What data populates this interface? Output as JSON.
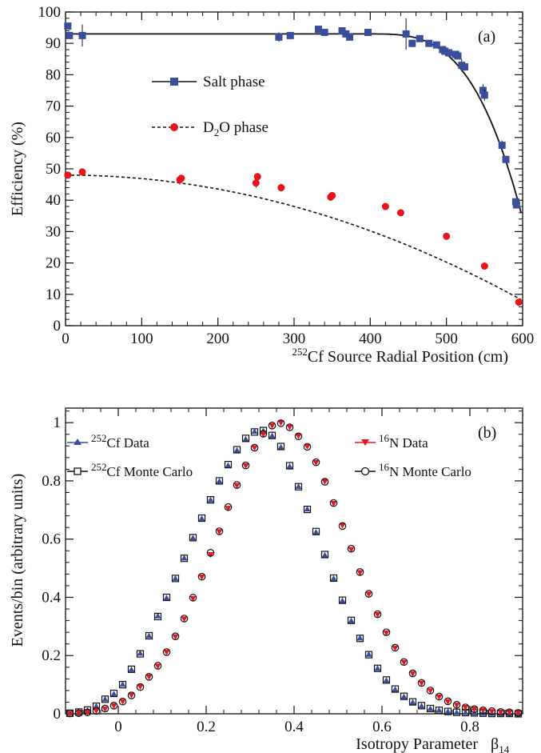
{
  "chart_data": [
    {
      "type": "scatter",
      "panel_label": "(a)",
      "xlabel": {
        "prefix_sup": "252",
        "text": "Cf Source Radial Position (cm)"
      },
      "ylabel": "Efficiency (%)",
      "xlim": [
        0,
        600
      ],
      "ylim": [
        0,
        100
      ],
      "x_ticks": [
        0,
        100,
        200,
        300,
        400,
        500,
        600
      ],
      "y_ticks": [
        0,
        10,
        20,
        30,
        40,
        50,
        60,
        70,
        80,
        90,
        100
      ],
      "legend": {
        "placement": "upper-center"
      },
      "series": [
        {
          "name": "Salt phase",
          "marker": "square",
          "color": "#3b4e9c",
          "fit_line": "solid",
          "fit": {
            "plateau": 93,
            "x0": 400,
            "x1": 598,
            "y_end": 36,
            "power": 3.2
          },
          "points": [
            {
              "x": 3,
              "y": 95.5,
              "err": 1
            },
            {
              "x": 5,
              "y": 92.5,
              "err": 1
            },
            {
              "x": 22,
              "y": 92.5,
              "err": 3.5
            },
            {
              "x": 280,
              "y": 92,
              "err": 1.5
            },
            {
              "x": 295,
              "y": 92.5,
              "err": 1
            },
            {
              "x": 332,
              "y": 94.5,
              "err": 0.8
            },
            {
              "x": 340,
              "y": 93.5,
              "err": 0.8
            },
            {
              "x": 363,
              "y": 94,
              "err": 1
            },
            {
              "x": 368,
              "y": 93,
              "err": 1.2
            },
            {
              "x": 373,
              "y": 92,
              "err": 0.8
            },
            {
              "x": 397,
              "y": 93.5,
              "err": 0.8
            },
            {
              "x": 447,
              "y": 93,
              "err": 5
            },
            {
              "x": 455,
              "y": 90,
              "err": 1.2
            },
            {
              "x": 465,
              "y": 91.5,
              "err": 0.8
            },
            {
              "x": 477,
              "y": 90,
              "err": 0.8
            },
            {
              "x": 487,
              "y": 89.5,
              "err": 0.8
            },
            {
              "x": 495,
              "y": 88,
              "err": 1
            },
            {
              "x": 498,
              "y": 87.5,
              "err": 1
            },
            {
              "x": 503,
              "y": 87,
              "err": 1
            },
            {
              "x": 512,
              "y": 86.5,
              "err": 1
            },
            {
              "x": 515,
              "y": 86,
              "err": 1
            },
            {
              "x": 520,
              "y": 83,
              "err": 2
            },
            {
              "x": 524,
              "y": 82.5,
              "err": 1.2
            },
            {
              "x": 548,
              "y": 75,
              "err": 2
            },
            {
              "x": 550,
              "y": 73.5,
              "err": 1.8
            },
            {
              "x": 573,
              "y": 57.5,
              "err": 1.5
            },
            {
              "x": 578,
              "y": 53,
              "err": 1
            },
            {
              "x": 591,
              "y": 39.5,
              "err": 1
            },
            {
              "x": 592,
              "y": 38.5,
              "err": 1
            }
          ]
        },
        {
          "name_main": "D",
          "name_sub": "2",
          "name_tail": "O phase",
          "marker": "circle",
          "color": "#e8141c",
          "fit_line": "dashed",
          "fit": {
            "y0": 48,
            "a": 0.000111
          },
          "points": [
            {
              "x": 3,
              "y": 48,
              "err": 0.8
            },
            {
              "x": 22,
              "y": 49,
              "err": 1
            },
            {
              "x": 150,
              "y": 46.5,
              "err": 1.5
            },
            {
              "x": 152,
              "y": 47,
              "err": 1
            },
            {
              "x": 250,
              "y": 45.5,
              "err": 1.5
            },
            {
              "x": 252,
              "y": 47.5,
              "err": 1.2
            },
            {
              "x": 283,
              "y": 44,
              "err": 1.2
            },
            {
              "x": 348,
              "y": 41,
              "err": 1.2
            },
            {
              "x": 350,
              "y": 41.5,
              "err": 0.8
            },
            {
              "x": 420,
              "y": 38,
              "err": 0.6
            },
            {
              "x": 440,
              "y": 36,
              "err": 0.6
            },
            {
              "x": 500,
              "y": 28.5,
              "err": 0.6
            },
            {
              "x": 550,
              "y": 19,
              "err": 0.6
            },
            {
              "x": 595,
              "y": 7.5,
              "err": 0.6
            }
          ]
        }
      ]
    },
    {
      "type": "scatter",
      "panel_label": "(b)",
      "xlabel": "Isotropy Parameter",
      "xlabel_symbol": {
        "main": "β",
        "sub": "14"
      },
      "ylabel": "Events/bin (arbitrary units)",
      "xlim": [
        -0.12,
        0.92
      ],
      "ylim": [
        0,
        1.05
      ],
      "x_ticks": [
        0,
        0.2,
        0.4,
        0.6,
        0.8
      ],
      "y_ticks": [
        0,
        0.2,
        0.4,
        0.6,
        0.8,
        1
      ],
      "x_tick_labels": [
        "0",
        "0.2",
        "0.4",
        "0.6",
        "0.8"
      ],
      "y_tick_labels": [
        "0",
        "0.2",
        "0.4",
        "0.6",
        "0.8",
        "1"
      ],
      "bin_width": 0.02,
      "x_start": -0.11,
      "series": [
        {
          "name_sup": "252",
          "name": "Cf Data",
          "marker": "triangle-up",
          "color": "#3b4e9c",
          "legend_position": "left",
          "y": [
            0.003,
            0.006,
            0.012,
            0.026,
            0.05,
            0.068,
            0.101,
            0.152,
            0.208,
            0.268,
            0.336,
            0.398,
            0.465,
            0.535,
            0.604,
            0.671,
            0.735,
            0.799,
            0.853,
            0.905,
            0.944,
            0.97,
            0.972,
            0.955,
            0.916,
            0.85,
            0.781,
            0.703,
            0.624,
            0.545,
            0.465,
            0.389,
            0.32,
            0.26,
            0.204,
            0.156,
            0.115,
            0.084,
            0.059,
            0.04,
            0.027,
            0.018,
            0.012,
            0.008,
            0.005,
            0.004,
            0.003,
            0.002,
            0.001,
            0.001,
            0.001,
            0.0
          ]
        },
        {
          "name_sup": "252",
          "name": "Cf Monte Carlo",
          "marker": "open-square",
          "color": "#111111",
          "legend_position": "left",
          "y": [
            0.002,
            0.006,
            0.013,
            0.026,
            0.05,
            0.07,
            0.1,
            0.153,
            0.206,
            0.268,
            0.334,
            0.4,
            0.465,
            0.534,
            0.605,
            0.672,
            0.735,
            0.8,
            0.856,
            0.907,
            0.946,
            0.968,
            0.973,
            0.956,
            0.918,
            0.852,
            0.78,
            0.702,
            0.626,
            0.547,
            0.466,
            0.39,
            0.321,
            0.259,
            0.203,
            0.156,
            0.116,
            0.085,
            0.06,
            0.041,
            0.028,
            0.018,
            0.012,
            0.008,
            0.005,
            0.004,
            0.003,
            0.002,
            0.001,
            0.001,
            0.001,
            0.0
          ]
        },
        {
          "name_sup": "16",
          "name": "N Data",
          "marker": "triangle-down",
          "color": "#e8141c",
          "legend_position": "right",
          "y": [
            0.0,
            0.002,
            0.005,
            0.01,
            0.017,
            0.028,
            0.042,
            0.064,
            0.093,
            0.127,
            0.164,
            0.212,
            0.265,
            0.326,
            0.396,
            0.47,
            0.547,
            0.626,
            0.706,
            0.784,
            0.852,
            0.914,
            0.96,
            0.99,
            1.0,
            0.985,
            0.954,
            0.918,
            0.863,
            0.798,
            0.723,
            0.647,
            0.565,
            0.485,
            0.411,
            0.341,
            0.278,
            0.226,
            0.177,
            0.138,
            0.105,
            0.079,
            0.058,
            0.042,
            0.03,
            0.022,
            0.016,
            0.012,
            0.008,
            0.006,
            0.005,
            0.003
          ]
        },
        {
          "name_sup": "16",
          "name": "N Monte Carlo",
          "marker": "open-circle",
          "color": "#111111",
          "legend_position": "right",
          "y": [
            0.001,
            0.002,
            0.005,
            0.01,
            0.018,
            0.028,
            0.042,
            0.063,
            0.092,
            0.127,
            0.165,
            0.212,
            0.266,
            0.327,
            0.399,
            0.471,
            0.553,
            0.627,
            0.71,
            0.786,
            0.853,
            0.914,
            0.962,
            0.99,
            0.998,
            0.984,
            0.953,
            0.917,
            0.864,
            0.797,
            0.724,
            0.645,
            0.567,
            0.487,
            0.412,
            0.342,
            0.28,
            0.227,
            0.178,
            0.139,
            0.106,
            0.08,
            0.059,
            0.043,
            0.031,
            0.022,
            0.016,
            0.012,
            0.009,
            0.006,
            0.005,
            0.003
          ]
        }
      ]
    }
  ]
}
